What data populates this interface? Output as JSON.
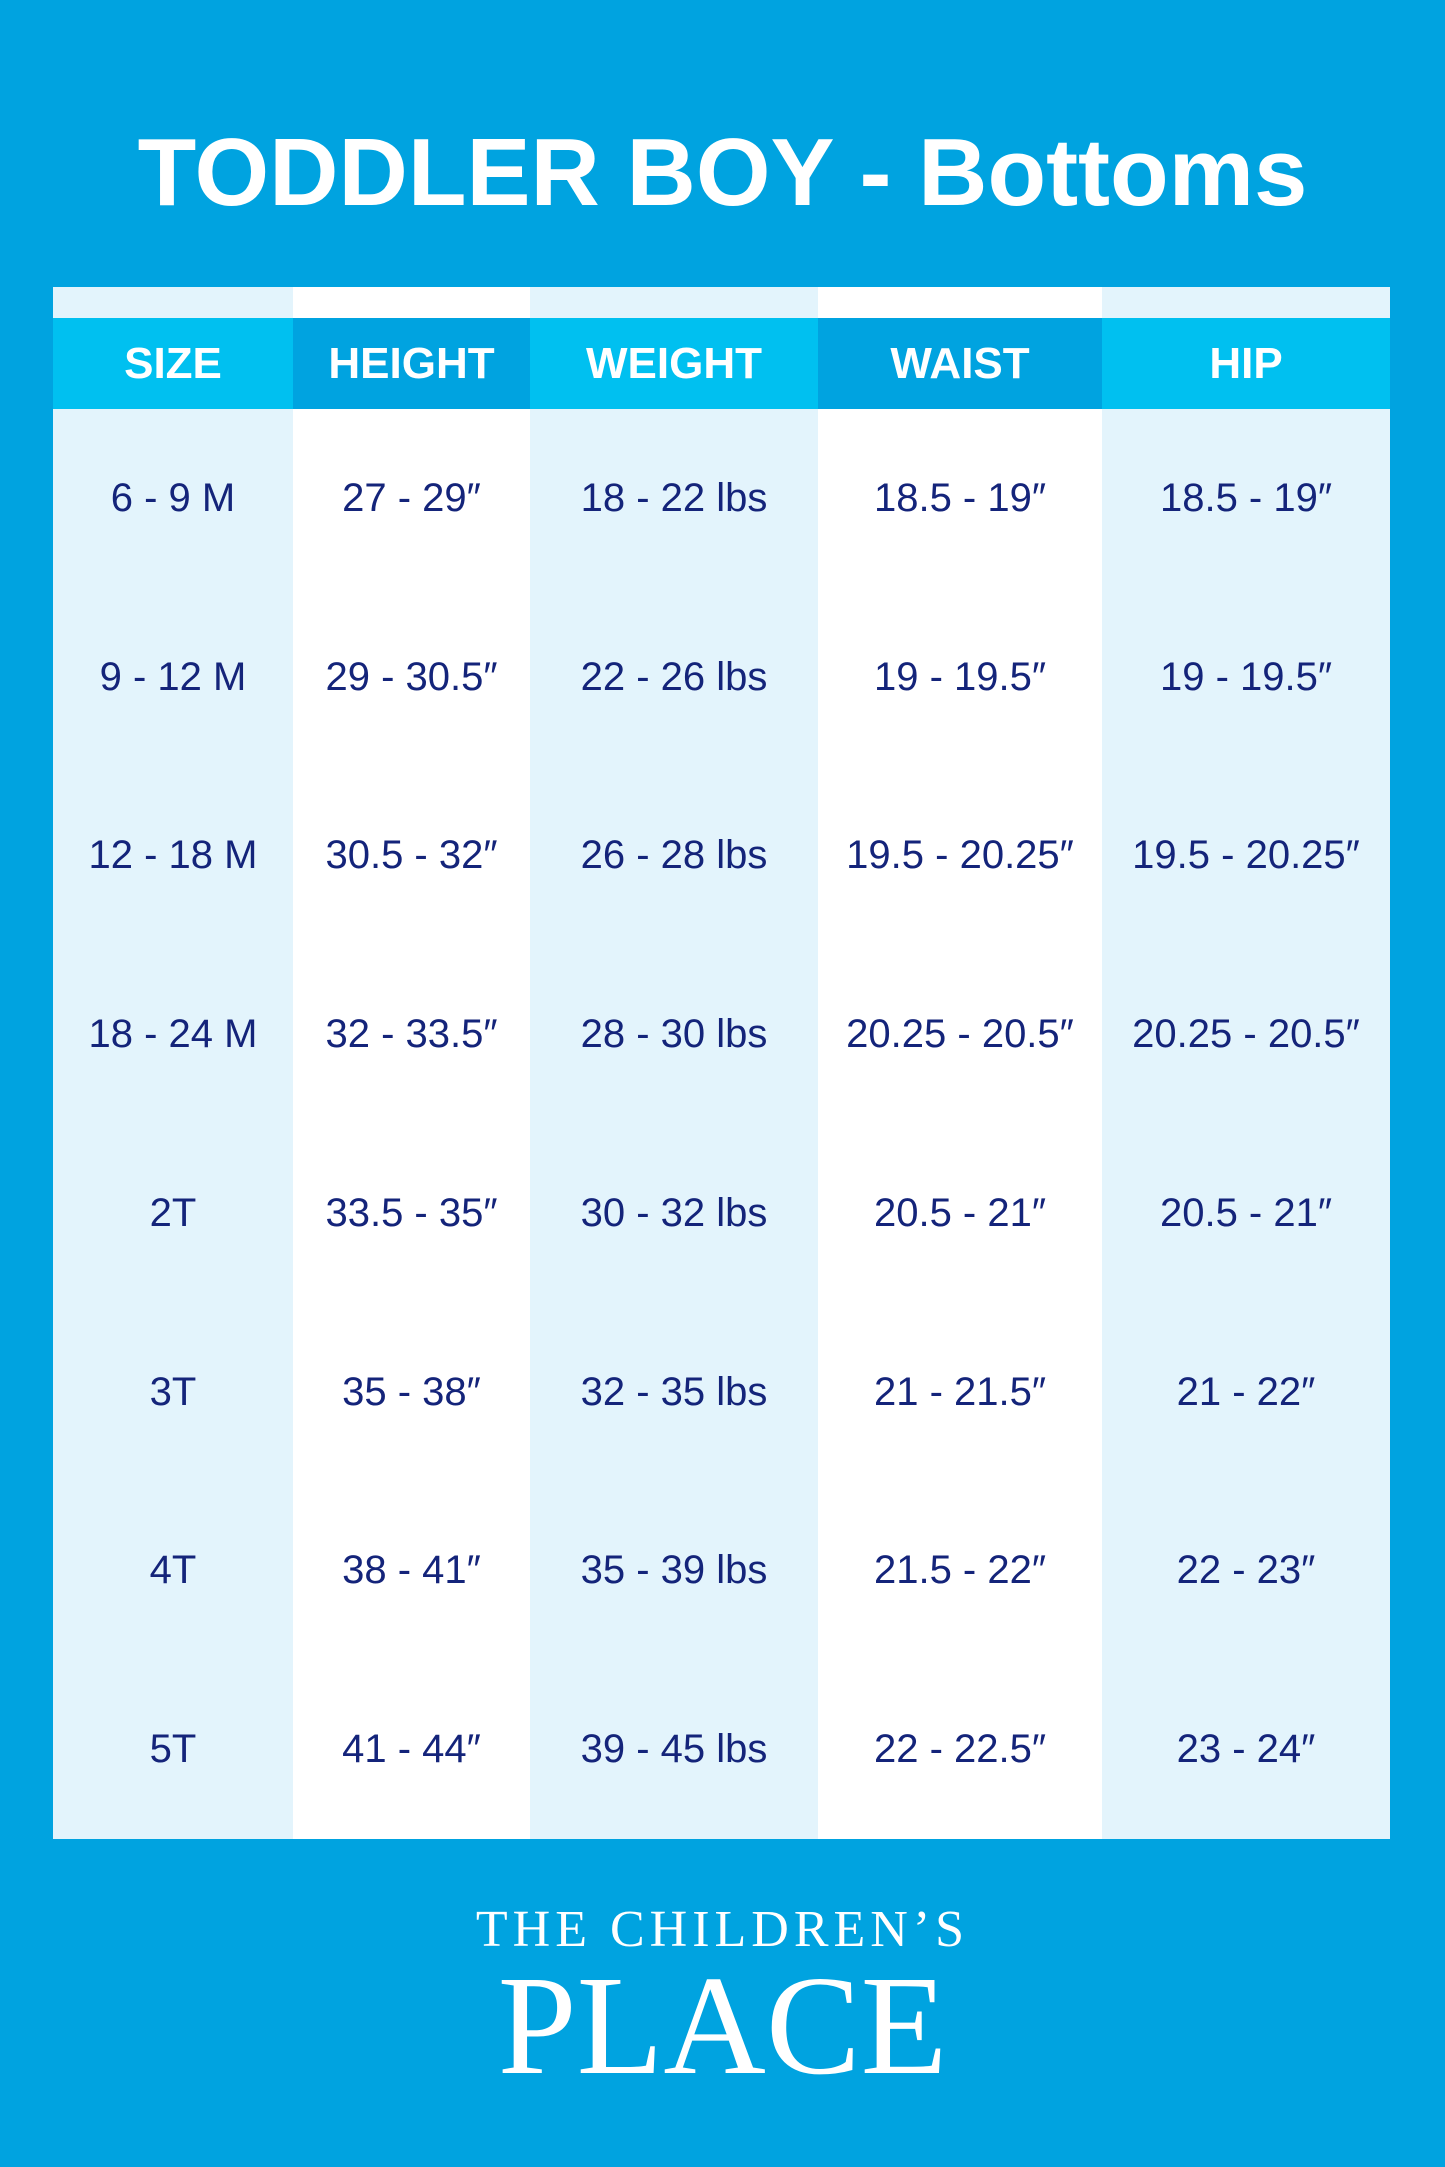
{
  "title": "TODDLER BOY - Bottoms",
  "colors": {
    "background": "#00a3e0",
    "header_light": "#00c0f0",
    "header_dark": "#00a3e0",
    "row_light": "#e3f4fc",
    "text": "#14247a"
  },
  "table": {
    "headers": [
      "SIZE",
      "HEIGHT",
      "WEIGHT",
      "WAIST",
      "HIP"
    ],
    "columns": [
      [
        "6 - 9 M",
        "9 - 12 M",
        "12  - 18 M",
        "18 - 24 M",
        "2T",
        "3T",
        "4T",
        "5T"
      ],
      [
        "27 - 29″",
        "29 - 30.5″",
        "30.5 - 32″",
        "32 - 33.5″",
        "33.5 - 35″",
        "35 - 38″",
        "38 - 41″",
        "41 - 44″"
      ],
      [
        "18 - 22 lbs",
        "22 - 26 lbs",
        "26 - 28 lbs",
        "28 - 30 lbs",
        "30 - 32 lbs",
        "32 - 35 lbs",
        "35 - 39 lbs",
        "39 - 45 lbs"
      ],
      [
        "18.5 - 19″",
        "19 - 19.5″",
        "19.5 - 20.25″",
        "20.25 - 20.5″",
        "20.5 - 21″",
        "21 - 21.5″",
        "21.5 - 22″",
        "22 - 22.5″"
      ],
      [
        "18.5 - 19″",
        "19 - 19.5″",
        "19.5 - 20.25″",
        "20.25 - 20.5″",
        "20.5 - 21″",
        "21 - 22″",
        "22 - 23″",
        "23 - 24″"
      ]
    ]
  },
  "logo": {
    "line1": "THE CHILDREN’S",
    "line2": "PLACE"
  }
}
